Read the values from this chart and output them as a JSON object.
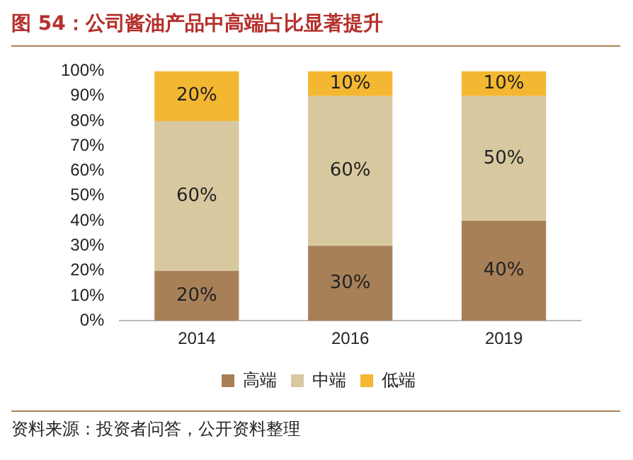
{
  "chart_data": {
    "type": "bar",
    "title": "图 54：公司酱油产品中高端占比显著提升",
    "stacked": true,
    "categories": [
      "2014",
      "2016",
      "2019"
    ],
    "series": [
      {
        "name": "高端",
        "color": "#a88058",
        "values": [
          20,
          30,
          40
        ],
        "value_labels": [
          "20%",
          "30%",
          "40%"
        ]
      },
      {
        "name": "中端",
        "color": "#d8c8a0",
        "values": [
          60,
          60,
          50
        ],
        "value_labels": [
          "60%",
          "60%",
          "50%"
        ]
      },
      {
        "name": "低端",
        "color": "#f3b731",
        "values": [
          20,
          10,
          10
        ],
        "value_labels": [
          "20%",
          "10%",
          "10%"
        ]
      }
    ],
    "ylim": [
      0,
      100
    ],
    "yticks": [
      {
        "value": 0,
        "label": "0%"
      },
      {
        "value": 10,
        "label": "10%"
      },
      {
        "value": 20,
        "label": "20%"
      },
      {
        "value": 30,
        "label": "30%"
      },
      {
        "value": 40,
        "label": "40%"
      },
      {
        "value": 50,
        "label": "50%"
      },
      {
        "value": 60,
        "label": "60%"
      },
      {
        "value": 70,
        "label": "70%"
      },
      {
        "value": 80,
        "label": "80%"
      },
      {
        "value": 90,
        "label": "90%"
      },
      {
        "value": 100,
        "label": "100%"
      }
    ],
    "grid": false,
    "legend": "bottom",
    "annotations": [
      "资料来源：投资者问答，公开资料整理"
    ]
  }
}
